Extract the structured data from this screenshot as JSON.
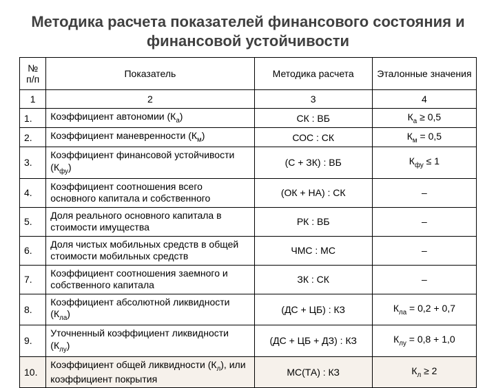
{
  "title": "Методика расчета показателей финансового состояния и финансовой устойчивости",
  "table": {
    "columns": [
      {
        "label": "№ п/п",
        "num": "1"
      },
      {
        "label": "Показатель",
        "num": "2"
      },
      {
        "label": "Методика расчета",
        "num": "3"
      },
      {
        "label": "Эталонные значения",
        "num": "4"
      }
    ],
    "rows": [
      {
        "n": "1.",
        "indicator_html": "Коэффициент автономии (К<sub>а</sub>)",
        "method": "СК : ВБ",
        "etalon_html": "К<sub>а</sub> ≥ 0,5"
      },
      {
        "n": "2.",
        "indicator_html": "Коэффициент маневренности (К<sub>м</sub>)",
        "method": "СОС : СК",
        "etalon_html": "К<sub>м</sub> = 0,5"
      },
      {
        "n": "3.",
        "indicator_html": "Коэффициент финансовой устойчивости (К<sub>фу</sub>)",
        "method": "(С + ЗК) : ВБ",
        "etalon_html": "К<sub>фу</sub> ≤ 1"
      },
      {
        "n": "4.",
        "indicator_html": "Коэффициент соотношения всего основного капитала и собственного",
        "method": "(ОК + НА) : СК",
        "etalon_html": "–"
      },
      {
        "n": "5.",
        "indicator_html": "Доля реального основного капитала в стоимости имущества",
        "method": "РК : ВБ",
        "etalon_html": "–"
      },
      {
        "n": "6.",
        "indicator_html": "Доля чистых мобильных средств в общей стоимости мобильных средств",
        "method": "ЧМС : МС",
        "etalon_html": "–"
      },
      {
        "n": "7.",
        "indicator_html": "Коэффициент соотношения заемного и собственного капитала",
        "method": "ЗК : СК",
        "etalon_html": "–"
      },
      {
        "n": "8.",
        "indicator_html": "Коэффициент абсолютной ликвидности (К<sub>ла</sub>)",
        "method": "(ДС + ЦБ) : КЗ",
        "etalon_html": "К<sub>ла</sub> = 0,2 + 0,7"
      },
      {
        "n": "9.",
        "indicator_html": "Уточненный коэффициент ликвидности (К<sub>лу</sub>)",
        "method": "(ДС + ЦБ + ДЗ) : КЗ",
        "etalon_html": "К<sub>лу</sub> = 0,8 + 1,0"
      },
      {
        "n": "10.",
        "indicator_html": "Коэффициент общей ликвидности (К<sub>л</sub>), или коэффициент покрытия",
        "method": "МС(ТА) : КЗ",
        "etalon_html": "К<sub>л</sub> ≥ 2",
        "highlight": true
      }
    ],
    "highlight_bg": "#f6f1eb",
    "border_color": "#000000",
    "font_size": 14,
    "title_color": "#404040"
  }
}
